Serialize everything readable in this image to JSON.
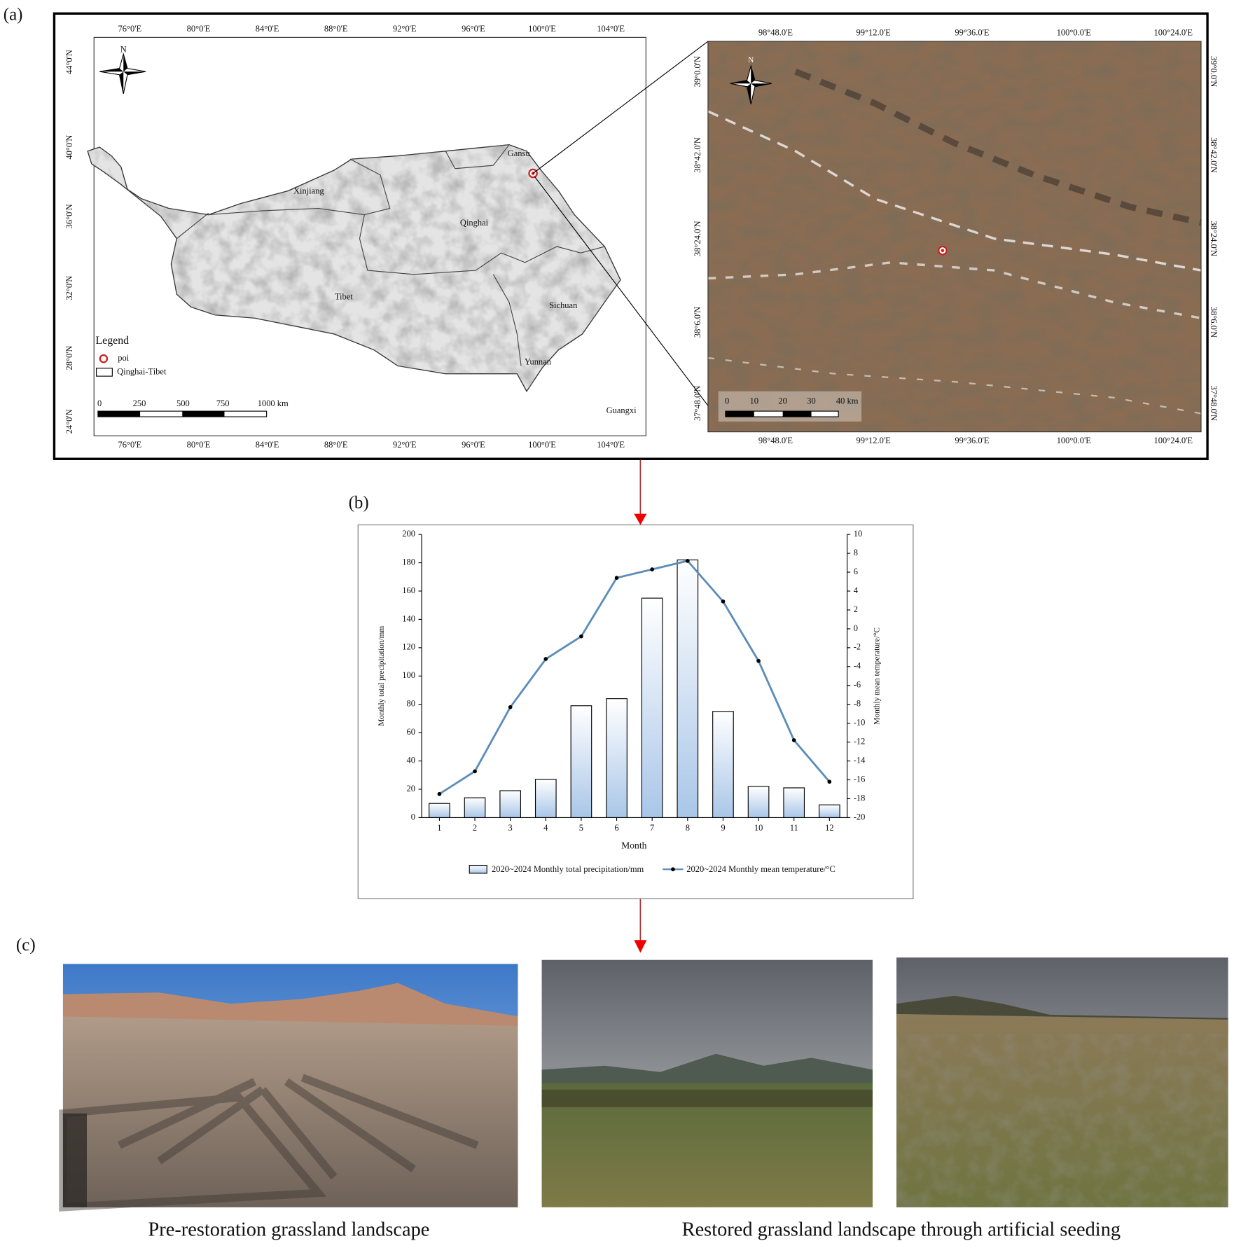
{
  "panel_labels": [
    "(a)",
    "(b)",
    "(c)"
  ],
  "overview_map": {
    "lon_ticks": [
      "76°0'E",
      "80°0'E",
      "84°0'E",
      "88°0'E",
      "92°0'E",
      "96°0'E",
      "100°0'E",
      "104°0'E"
    ],
    "lat_ticks": [
      "44°0'N",
      "40°0'N",
      "36°0'N",
      "32°0'N",
      "28°0'N",
      "24°0'N"
    ],
    "compass": "N",
    "regions": [
      "Gansu",
      "Xinjiang",
      "Qinghai",
      "Tibet",
      "Sichuan",
      "Yunnan",
      "Guangxi"
    ],
    "legend": {
      "title": "Legend",
      "items": [
        "poi",
        "Qinghai-Tibet"
      ]
    },
    "scale_labels": [
      "0",
      "250",
      "500",
      "750",
      "1000 km"
    ]
  },
  "detail_map": {
    "lon_ticks": [
      "98°48.0'E",
      "99°12.0'E",
      "99°36.0'E",
      "100°0.0'E",
      "100°24.0'E"
    ],
    "lat_ticks": [
      "39°0.0'N",
      "38°42.0'N",
      "38°24.0'N",
      "38°6.0'N",
      "37°48.0'N"
    ],
    "compass": "N",
    "scale_labels": [
      "0",
      "10",
      "20",
      "30",
      "40 km"
    ]
  },
  "chart_data": {
    "type": "bar",
    "x_label": "Month",
    "y_label": "Monthly total precipitation/mm",
    "y2_label": "Monthly mean temperature/°C",
    "categories": [
      "1",
      "2",
      "3",
      "4",
      "5",
      "6",
      "7",
      "8",
      "9",
      "10",
      "11",
      "12"
    ],
    "series": [
      {
        "name": "2020~2024 Monthly total precipitation/mm",
        "color": "#a9c6e8",
        "type": "bar",
        "values": [
          10,
          14,
          19,
          27,
          79,
          84,
          155,
          182,
          75,
          22,
          21,
          9
        ]
      },
      {
        "name": "2020~2024 Monthly mean temperature/°C",
        "color": "#5b8db8",
        "type": "line",
        "axis": "y2",
        "values": [
          -17.5,
          -15.1,
          -8.3,
          -3.2,
          -0.8,
          5.4,
          6.3,
          7.2,
          2.9,
          -3.4,
          -11.8,
          -16.2
        ]
      }
    ],
    "ylim": [
      0,
      200
    ],
    "yticks": [
      0,
      20,
      40,
      60,
      80,
      100,
      120,
      140,
      160,
      180,
      200
    ],
    "y2lim": [
      -20,
      10
    ],
    "y2ticks": [
      -20,
      -18,
      -16,
      -14,
      -12,
      -10,
      -8,
      -6,
      -4,
      -2,
      0,
      2,
      4,
      6,
      8,
      10
    ],
    "legend": "bottom",
    "grid": false
  },
  "photos": {
    "captions": [
      "Pre-restoration grassland landscape",
      "Restored grassland landscape through artificial seeding"
    ]
  }
}
